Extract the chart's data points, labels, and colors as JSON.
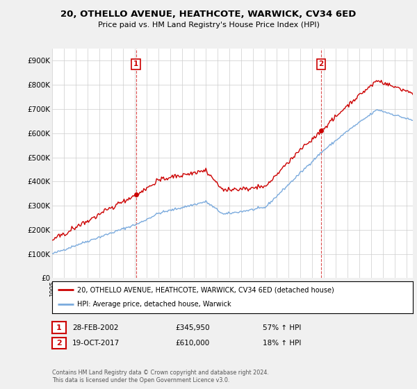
{
  "title": "20, OTHELLO AVENUE, HEATHCOTE, WARWICK, CV34 6ED",
  "subtitle": "Price paid vs. HM Land Registry's House Price Index (HPI)",
  "sale1_date_label": "28-FEB-2002",
  "sale1_price": 345950,
  "sale1_hpi_pct": "57% ↑ HPI",
  "sale2_date_label": "19-OCT-2017",
  "sale2_price": 610000,
  "sale2_hpi_pct": "18% ↑ HPI",
  "legend_line1": "20, OTHELLO AVENUE, HEATHCOTE, WARWICK, CV34 6ED (detached house)",
  "legend_line2": "HPI: Average price, detached house, Warwick",
  "footnote": "Contains HM Land Registry data © Crown copyright and database right 2024.\nThis data is licensed under the Open Government Licence v3.0.",
  "sale1_color": "#cc0000",
  "sale2_color": "#cc0000",
  "hpi_line_color": "#7aaadd",
  "property_line_color": "#cc0000",
  "background_color": "#f0f0f0",
  "plot_bg_color": "#ffffff",
  "ylim": [
    0,
    950000
  ],
  "yticks": [
    0,
    100000,
    200000,
    300000,
    400000,
    500000,
    600000,
    700000,
    800000,
    900000
  ],
  "ytick_labels": [
    "£0",
    "£100K",
    "£200K",
    "£300K",
    "£400K",
    "£500K",
    "£600K",
    "£700K",
    "£800K",
    "£900K"
  ],
  "xstart_year": 1995,
  "xend_year": 2025
}
